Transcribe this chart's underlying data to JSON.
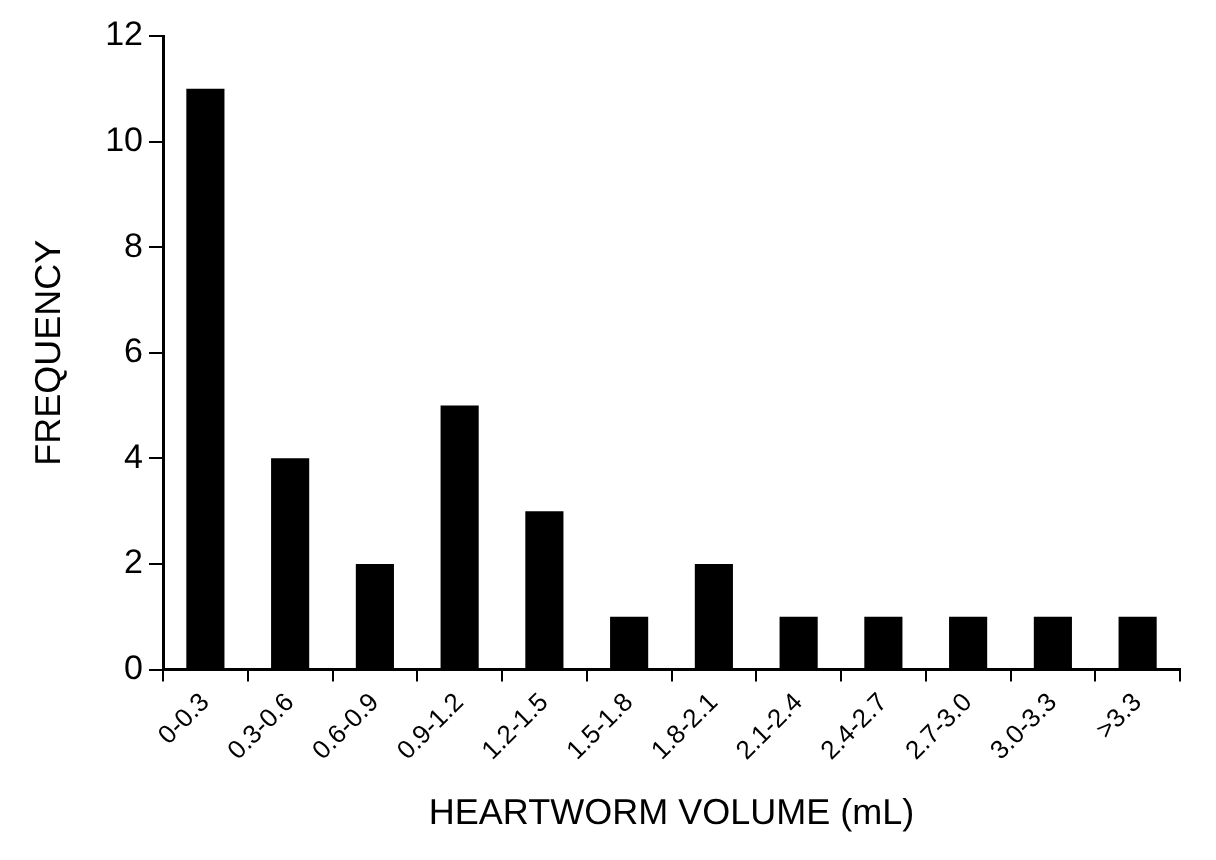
{
  "chart_data": {
    "type": "bar",
    "xlabel": "HEARTWORM VOLUME (mL)",
    "ylabel": "FREQUENCY",
    "categories": [
      "0-0.3",
      "0.3-0.6",
      "0.6-0.9",
      "0.9-1.2",
      "1.2-1.5",
      "1.5-1.8",
      "1.8-2.1",
      "2.1-2.4",
      "2.4-2.7",
      "2.7-3.0",
      "3.0-3.3",
      ">3.3"
    ],
    "values": [
      11,
      4,
      2,
      5,
      3,
      1,
      2,
      1,
      1,
      1,
      1,
      1
    ],
    "color": "#000000",
    "ylim": [
      0,
      12
    ],
    "yticks": [
      0,
      2,
      4,
      6,
      8,
      10,
      12
    ],
    "grid": false,
    "legend": false
  }
}
